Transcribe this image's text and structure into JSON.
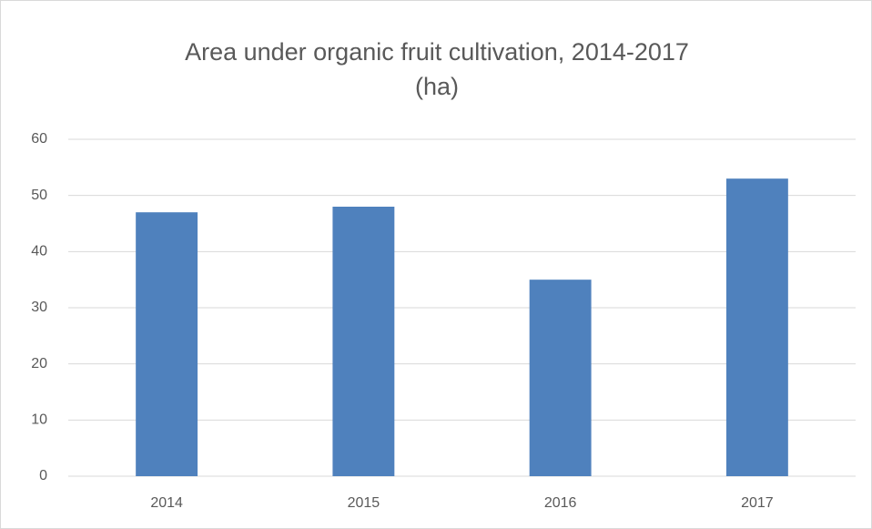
{
  "chart_data": {
    "type": "bar",
    "title": "Area under organic fruit cultivation, 2014-2017 (ha)",
    "categories": [
      "2014",
      "2015",
      "2016",
      "2017"
    ],
    "values": [
      47,
      48,
      35,
      53
    ],
    "color": "#4f81bd",
    "ylim": [
      0,
      60
    ],
    "yticks": [
      0,
      10,
      20,
      30,
      40,
      50,
      60
    ],
    "grid": true
  }
}
